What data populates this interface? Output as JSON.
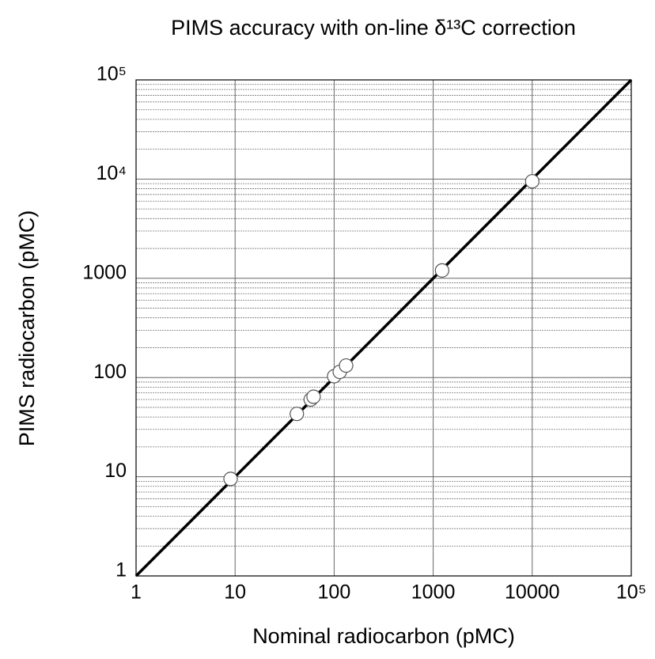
{
  "chart_data": {
    "type": "scatter",
    "title": "PIMS accuracy with on-line δ¹³C correction",
    "x_label": "Nominal radiocarbon (pMC)",
    "y_label": "PIMS radiocarbon (pMC)",
    "log_x": true,
    "log_y": true,
    "xlim": [
      1,
      100000
    ],
    "ylim": [
      1,
      100000
    ],
    "xticks": [
      1,
      10,
      100,
      1000,
      10000,
      {
        "value": 100000,
        "label": "10⁵"
      }
    ],
    "yticks": [
      1,
      10,
      100,
      1000,
      {
        "value": 10000,
        "label": "10⁴"
      },
      {
        "value": 100000,
        "label": "10⁵"
      }
    ],
    "yminorticks": [
      2,
      3,
      4,
      5,
      6,
      7,
      8,
      9,
      20,
      30,
      40,
      50,
      60,
      70,
      80,
      90,
      200,
      300,
      400,
      500,
      600,
      700,
      800,
      900,
      2000,
      3000,
      4000,
      5000,
      6000,
      7000,
      8000,
      9000,
      20000,
      30000,
      40000,
      50000,
      60000,
      70000,
      80000,
      90000
    ],
    "grid": true,
    "reference_line": {
      "x": [
        1,
        100000
      ],
      "y": [
        1,
        100000
      ],
      "color": "#000000"
    },
    "series": [
      {
        "color": "#ffffff",
        "x": [
          9,
          42,
          58,
          62,
          100,
          114,
          132,
          1230,
          10000
        ],
        "values": [
          9.5,
          43,
          60,
          64,
          103,
          114,
          132,
          1200,
          9500
        ]
      }
    ]
  }
}
